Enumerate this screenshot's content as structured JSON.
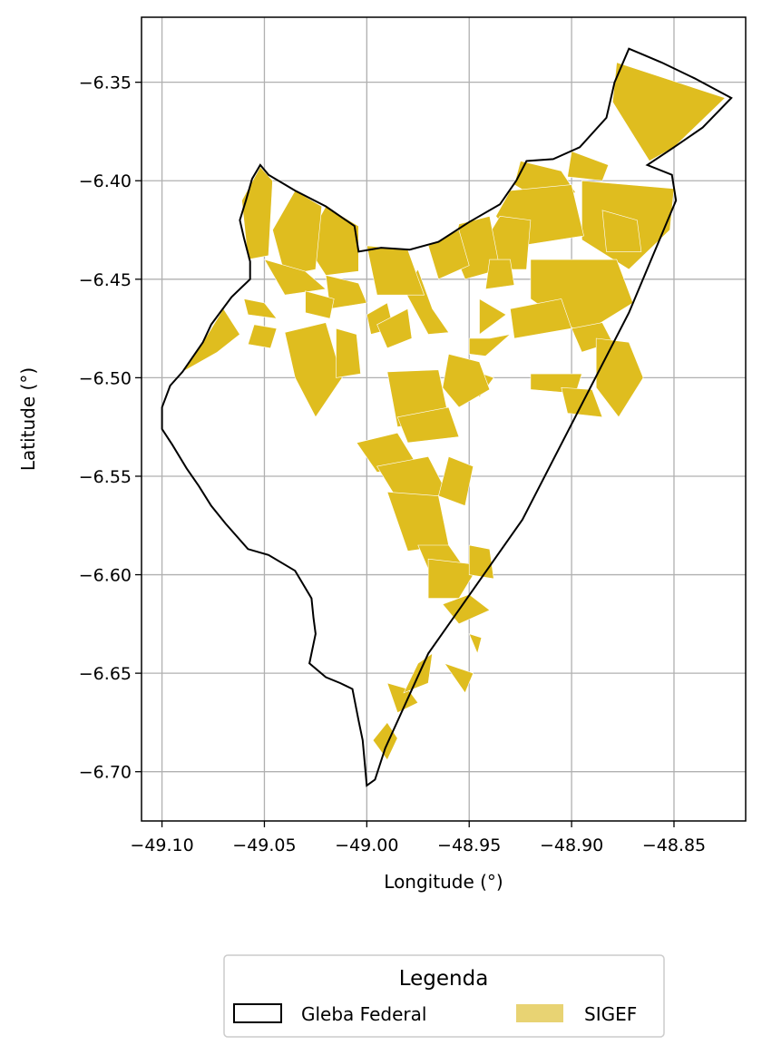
{
  "chart_data": {
    "type": "map",
    "xlabel": "Longitude (°)",
    "ylabel": "Latitude (°)",
    "xlim": [
      -49.11,
      -48.815
    ],
    "ylim": [
      -6.725,
      -6.317
    ],
    "grid": true,
    "x_ticks": [
      -49.1,
      -49.05,
      -49.0,
      -48.95,
      -48.9,
      -48.85
    ],
    "x_tick_labels": [
      "−49.10",
      "−49.05",
      "−49.00",
      "−48.95",
      "−48.90",
      "−48.85"
    ],
    "y_ticks": [
      -6.35,
      -6.4,
      -6.45,
      -6.5,
      -6.55,
      -6.6,
      -6.65,
      -6.7
    ],
    "y_tick_labels": [
      "−6.35",
      "−6.40",
      "−6.45",
      "−6.50",
      "−6.55",
      "−6.60",
      "−6.65",
      "−6.70"
    ],
    "legend": {
      "title": "Legenda",
      "placement": "bottom-center",
      "entries": [
        {
          "label": "Gleba Federal",
          "style": "outline",
          "color": "#000000"
        },
        {
          "label": "SIGEF",
          "style": "fill",
          "color": "#e8d373"
        }
      ]
    },
    "colors": {
      "sigef_fill": "#dfbd1f",
      "boundary": "#000000",
      "grid": "#b0b0b0"
    },
    "boundary": [
      [
        -48.872,
        -6.333
      ],
      [
        -48.865,
        -6.336
      ],
      [
        -48.856,
        -6.34
      ],
      [
        -48.84,
        -6.348
      ],
      [
        -48.822,
        -6.358
      ],
      [
        -48.836,
        -6.373
      ],
      [
        -48.85,
        -6.383
      ],
      [
        -48.863,
        -6.392
      ],
      [
        -48.851,
        -6.397
      ],
      [
        -48.849,
        -6.41
      ],
      [
        -48.872,
        -6.467
      ],
      [
        -48.924,
        -6.572
      ],
      [
        -48.97,
        -6.64
      ],
      [
        -48.991,
        -6.688
      ],
      [
        -48.996,
        -6.704
      ],
      [
        -49.0,
        -6.707
      ],
      [
        -49.002,
        -6.684
      ],
      [
        -49.004,
        -6.674
      ],
      [
        -49.007,
        -6.658
      ],
      [
        -49.013,
        -6.655
      ],
      [
        -49.02,
        -6.652
      ],
      [
        -49.028,
        -6.645
      ],
      [
        -49.025,
        -6.63
      ],
      [
        -49.026,
        -6.622
      ],
      [
        -49.027,
        -6.612
      ],
      [
        -49.035,
        -6.598
      ],
      [
        -49.048,
        -6.59
      ],
      [
        -49.058,
        -6.587
      ],
      [
        -49.069,
        -6.574
      ],
      [
        -49.076,
        -6.565
      ],
      [
        -49.082,
        -6.555
      ],
      [
        -49.088,
        -6.546
      ],
      [
        -49.095,
        -6.534
      ],
      [
        -49.1,
        -6.526
      ],
      [
        -49.1,
        -6.515
      ],
      [
        -49.096,
        -6.504
      ],
      [
        -49.09,
        -6.497
      ],
      [
        -49.08,
        -6.482
      ],
      [
        -49.076,
        -6.473
      ],
      [
        -49.071,
        -6.466
      ],
      [
        -49.066,
        -6.459
      ],
      [
        -49.061,
        -6.454
      ],
      [
        -49.057,
        -6.45
      ],
      [
        -49.057,
        -6.441
      ],
      [
        -49.06,
        -6.429
      ],
      [
        -49.062,
        -6.42
      ],
      [
        -49.059,
        -6.41
      ],
      [
        -49.056,
        -6.399
      ],
      [
        -49.052,
        -6.392
      ],
      [
        -49.048,
        -6.397
      ],
      [
        -49.035,
        -6.405
      ],
      [
        -49.02,
        -6.413
      ],
      [
        -49.006,
        -6.423
      ],
      [
        -49.004,
        -6.436
      ],
      [
        -48.993,
        -6.434
      ],
      [
        -48.979,
        -6.435
      ],
      [
        -48.965,
        -6.431
      ],
      [
        -48.95,
        -6.421
      ],
      [
        -48.935,
        -6.412
      ],
      [
        -48.927,
        -6.4
      ],
      [
        -48.922,
        -6.39
      ],
      [
        -48.909,
        -6.389
      ],
      [
        -48.896,
        -6.383
      ],
      [
        -48.883,
        -6.368
      ],
      [
        -48.879,
        -6.35
      ],
      [
        -48.872,
        -6.333
      ]
    ],
    "sigef_parcels": [
      [
        [
          -48.878,
          -6.34
        ],
        [
          -48.825,
          -6.358
        ],
        [
          -48.85,
          -6.383
        ],
        [
          -48.862,
          -6.39
        ],
        [
          -48.868,
          -6.38
        ],
        [
          -48.88,
          -6.36
        ]
      ],
      [
        [
          -48.925,
          -6.39
        ],
        [
          -48.905,
          -6.395
        ],
        [
          -48.898,
          -6.406
        ],
        [
          -48.915,
          -6.41
        ],
        [
          -48.928,
          -6.402
        ]
      ],
      [
        [
          -48.9,
          -6.385
        ],
        [
          -48.882,
          -6.392
        ],
        [
          -48.885,
          -6.4
        ],
        [
          -48.902,
          -6.398
        ]
      ],
      [
        [
          -48.895,
          -6.4
        ],
        [
          -48.85,
          -6.404
        ],
        [
          -48.852,
          -6.425
        ],
        [
          -48.872,
          -6.445
        ],
        [
          -48.895,
          -6.43
        ]
      ],
      [
        [
          -48.93,
          -6.405
        ],
        [
          -48.9,
          -6.402
        ],
        [
          -48.894,
          -6.428
        ],
        [
          -48.925,
          -6.433
        ],
        [
          -48.937,
          -6.418
        ]
      ],
      [
        [
          -48.935,
          -6.418
        ],
        [
          -48.92,
          -6.42
        ],
        [
          -48.922,
          -6.445
        ],
        [
          -48.938,
          -6.445
        ],
        [
          -48.942,
          -6.43
        ]
      ],
      [
        [
          -48.955,
          -6.422
        ],
        [
          -48.94,
          -6.418
        ],
        [
          -48.935,
          -6.445
        ],
        [
          -48.952,
          -6.45
        ],
        [
          -48.958,
          -6.435
        ]
      ],
      [
        [
          -48.97,
          -6.433
        ],
        [
          -48.955,
          -6.425
        ],
        [
          -48.95,
          -6.443
        ],
        [
          -48.965,
          -6.45
        ]
      ],
      [
        [
          -48.92,
          -6.44
        ],
        [
          -48.878,
          -6.44
        ],
        [
          -48.87,
          -6.462
        ],
        [
          -48.895,
          -6.478
        ],
        [
          -48.92,
          -6.46
        ]
      ],
      [
        [
          -48.93,
          -6.465
        ],
        [
          -48.905,
          -6.46
        ],
        [
          -48.9,
          -6.475
        ],
        [
          -48.928,
          -6.48
        ]
      ],
      [
        [
          -48.945,
          -6.46
        ],
        [
          -48.932,
          -6.468
        ],
        [
          -48.945,
          -6.478
        ]
      ],
      [
        [
          -48.94,
          -6.44
        ],
        [
          -48.93,
          -6.44
        ],
        [
          -48.928,
          -6.453
        ],
        [
          -48.942,
          -6.455
        ]
      ],
      [
        [
          -48.9,
          -6.475
        ],
        [
          -48.885,
          -6.472
        ],
        [
          -48.88,
          -6.482
        ],
        [
          -48.895,
          -6.487
        ]
      ],
      [
        [
          -48.92,
          -6.498
        ],
        [
          -48.895,
          -6.498
        ],
        [
          -48.898,
          -6.508
        ],
        [
          -48.92,
          -6.506
        ]
      ],
      [
        [
          -48.888,
          -6.48
        ],
        [
          -48.872,
          -6.482
        ],
        [
          -48.865,
          -6.5
        ],
        [
          -48.877,
          -6.52
        ],
        [
          -48.888,
          -6.505
        ]
      ],
      [
        [
          -48.95,
          -6.48
        ],
        [
          -48.94,
          -6.48
        ],
        [
          -48.93,
          -6.478
        ],
        [
          -48.942,
          -6.489
        ],
        [
          -48.95,
          -6.488
        ]
      ],
      [
        [
          -48.952,
          -6.495
        ],
        [
          -48.938,
          -6.5
        ],
        [
          -48.945,
          -6.51
        ]
      ],
      [
        [
          -48.96,
          -6.488
        ],
        [
          -48.945,
          -6.492
        ],
        [
          -48.94,
          -6.506
        ],
        [
          -48.955,
          -6.515
        ],
        [
          -48.963,
          -6.505
        ]
      ],
      [
        [
          -48.975,
          -6.445
        ],
        [
          -48.968,
          -6.465
        ],
        [
          -48.96,
          -6.477
        ],
        [
          -48.97,
          -6.478
        ],
        [
          -48.982,
          -6.455
        ]
      ],
      [
        [
          -49.0,
          -6.433
        ],
        [
          -48.98,
          -6.435
        ],
        [
          -48.972,
          -6.458
        ],
        [
          -48.995,
          -6.458
        ]
      ],
      [
        [
          -49.02,
          -6.413
        ],
        [
          -49.004,
          -6.423
        ],
        [
          -49.004,
          -6.446
        ],
        [
          -49.02,
          -6.448
        ],
        [
          -49.03,
          -6.432
        ]
      ],
      [
        [
          -49.035,
          -6.405
        ],
        [
          -49.022,
          -6.413
        ],
        [
          -49.025,
          -6.445
        ],
        [
          -49.04,
          -6.448
        ],
        [
          -49.046,
          -6.425
        ]
      ],
      [
        [
          -49.052,
          -6.393
        ],
        [
          -49.046,
          -6.4
        ],
        [
          -49.048,
          -6.438
        ],
        [
          -49.058,
          -6.44
        ],
        [
          -49.061,
          -6.41
        ]
      ],
      [
        [
          -49.05,
          -6.44
        ],
        [
          -49.03,
          -6.446
        ],
        [
          -49.02,
          -6.455
        ],
        [
          -49.04,
          -6.458
        ]
      ],
      [
        [
          -49.02,
          -6.448
        ],
        [
          -49.004,
          -6.452
        ],
        [
          -49.0,
          -6.462
        ],
        [
          -49.018,
          -6.465
        ]
      ],
      [
        [
          -49.03,
          -6.456
        ],
        [
          -49.016,
          -6.46
        ],
        [
          -49.018,
          -6.47
        ],
        [
          -49.03,
          -6.467
        ]
      ],
      [
        [
          -49.06,
          -6.46
        ],
        [
          -49.05,
          -6.462
        ],
        [
          -49.044,
          -6.47
        ],
        [
          -49.058,
          -6.468
        ]
      ],
      [
        [
          -49.0,
          -6.468
        ],
        [
          -48.99,
          -6.462
        ],
        [
          -48.987,
          -6.475
        ],
        [
          -48.998,
          -6.478
        ]
      ],
      [
        [
          -48.995,
          -6.473
        ],
        [
          -48.98,
          -6.465
        ],
        [
          -48.978,
          -6.48
        ],
        [
          -48.99,
          -6.485
        ]
      ],
      [
        [
          -49.07,
          -6.465
        ],
        [
          -49.08,
          -6.482
        ],
        [
          -49.09,
          -6.497
        ],
        [
          -49.073,
          -6.487
        ],
        [
          -49.062,
          -6.478
        ]
      ],
      [
        [
          -49.055,
          -6.473
        ],
        [
          -49.044,
          -6.475
        ],
        [
          -49.047,
          -6.485
        ],
        [
          -49.058,
          -6.483
        ]
      ],
      [
        [
          -49.04,
          -6.477
        ],
        [
          -49.02,
          -6.472
        ],
        [
          -49.012,
          -6.5
        ],
        [
          -49.025,
          -6.52
        ],
        [
          -49.035,
          -6.5
        ]
      ],
      [
        [
          -49.015,
          -6.475
        ],
        [
          -49.005,
          -6.478
        ],
        [
          -49.003,
          -6.498
        ],
        [
          -49.015,
          -6.5
        ]
      ],
      [
        [
          -48.99,
          -6.497
        ],
        [
          -48.965,
          -6.496
        ],
        [
          -48.96,
          -6.52
        ],
        [
          -48.985,
          -6.525
        ]
      ],
      [
        [
          -48.985,
          -6.52
        ],
        [
          -48.96,
          -6.515
        ],
        [
          -48.955,
          -6.53
        ],
        [
          -48.98,
          -6.533
        ]
      ],
      [
        [
          -49.005,
          -6.533
        ],
        [
          -48.985,
          -6.528
        ],
        [
          -48.975,
          -6.545
        ],
        [
          -48.995,
          -6.548
        ]
      ],
      [
        [
          -48.995,
          -6.545
        ],
        [
          -48.97,
          -6.54
        ],
        [
          -48.96,
          -6.56
        ],
        [
          -48.985,
          -6.562
        ]
      ],
      [
        [
          -48.99,
          -6.558
        ],
        [
          -48.965,
          -6.56
        ],
        [
          -48.96,
          -6.585
        ],
        [
          -48.98,
          -6.588
        ]
      ],
      [
        [
          -48.975,
          -6.585
        ],
        [
          -48.96,
          -6.585
        ],
        [
          -48.95,
          -6.6
        ],
        [
          -48.968,
          -6.602
        ]
      ],
      [
        [
          -48.96,
          -6.54
        ],
        [
          -48.948,
          -6.545
        ],
        [
          -48.952,
          -6.565
        ],
        [
          -48.965,
          -6.56
        ]
      ],
      [
        [
          -48.97,
          -6.592
        ],
        [
          -48.945,
          -6.595
        ],
        [
          -48.955,
          -6.612
        ],
        [
          -48.97,
          -6.612
        ]
      ],
      [
        [
          -48.963,
          -6.615
        ],
        [
          -48.95,
          -6.61
        ],
        [
          -48.94,
          -6.618
        ],
        [
          -48.955,
          -6.625
        ]
      ],
      [
        [
          -48.95,
          -6.585
        ],
        [
          -48.94,
          -6.587
        ],
        [
          -48.938,
          -6.602
        ],
        [
          -48.95,
          -6.6
        ]
      ],
      [
        [
          -48.99,
          -6.655
        ],
        [
          -48.98,
          -6.658
        ],
        [
          -48.975,
          -6.665
        ],
        [
          -48.985,
          -6.67
        ]
      ],
      [
        [
          -48.968,
          -6.64
        ],
        [
          -48.975,
          -6.645
        ],
        [
          -48.982,
          -6.66
        ],
        [
          -48.97,
          -6.655
        ]
      ],
      [
        [
          -48.99,
          -6.675
        ],
        [
          -48.997,
          -6.684
        ],
        [
          -48.99,
          -6.694
        ],
        [
          -48.985,
          -6.683
        ]
      ],
      [
        [
          -48.95,
          -6.63
        ],
        [
          -48.944,
          -6.632
        ],
        [
          -48.946,
          -6.64
        ]
      ],
      [
        [
          -48.962,
          -6.645
        ],
        [
          -48.948,
          -6.65
        ],
        [
          -48.952,
          -6.66
        ]
      ],
      [
        [
          -48.885,
          -6.415
        ],
        [
          -48.868,
          -6.42
        ],
        [
          -48.866,
          -6.436
        ],
        [
          -48.883,
          -6.436
        ]
      ],
      [
        [
          -48.905,
          -6.505
        ],
        [
          -48.89,
          -6.506
        ],
        [
          -48.885,
          -6.52
        ],
        [
          -48.902,
          -6.518
        ]
      ]
    ]
  }
}
